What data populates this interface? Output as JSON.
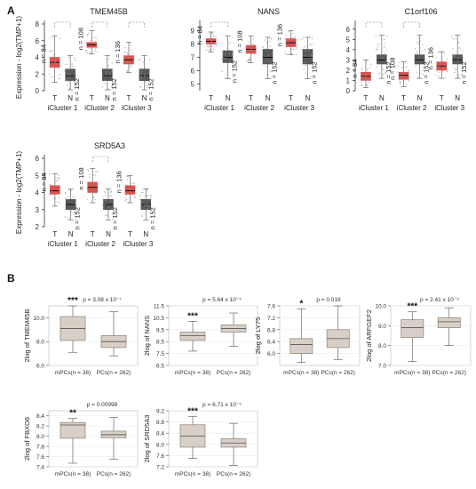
{
  "figure": {
    "panel_labels": [
      "A",
      "B"
    ],
    "ylabel_a": "Expression - log2(TMP+1)",
    "group_labels": [
      "T",
      "N"
    ],
    "cluster_labels": [
      "iCluster 1",
      "iCluster 2",
      "iCluster 3"
    ],
    "ylabel_b_prefix": "2log of "
  },
  "colors": {
    "tumor": "#d9534f",
    "normal": "#595959",
    "beige": "#d8cfc6",
    "beige_edge": "#8a8178"
  },
  "chart_data": [
    {
      "type": "box",
      "title": "TMEM45B",
      "ylabel": "Expression - log2(TMP+1)",
      "ylim": [
        0,
        8
      ],
      "yticks": [
        0,
        2,
        4,
        6,
        8
      ],
      "categories": [
        "iCluster 1",
        "iCluster 2",
        "iCluster 3"
      ],
      "series": [
        {
          "name": "T",
          "n": [
            "n = 84",
            "n = 108",
            "n = 136"
          ],
          "boxes": [
            [
              1.0,
              2.8,
              3.4,
              4.0,
              6.6
            ],
            [
              4.4,
              5.2,
              5.5,
              5.8,
              7.2
            ],
            [
              2.2,
              3.2,
              3.7,
              4.2,
              5.8
            ]
          ]
        },
        {
          "name": "N",
          "n": [
            "n = 152",
            "n = 152",
            "n = 152"
          ],
          "boxes": [
            [
              0.1,
              1.2,
              1.8,
              2.6,
              4.2
            ],
            [
              0.1,
              1.2,
              1.8,
              2.6,
              4.2
            ],
            [
              0.1,
              1.2,
              1.8,
              2.6,
              4.2
            ]
          ]
        }
      ],
      "significance": [
        true,
        true,
        true
      ]
    },
    {
      "type": "box",
      "title": "NANS",
      "ylim": [
        4.5,
        9.5
      ],
      "yticks": [
        5,
        6,
        7,
        8,
        9
      ],
      "categories": [
        "iCluster 1",
        "iCluster 2",
        "iCluster 3"
      ],
      "series": [
        {
          "name": "T",
          "n": [
            "n = 84",
            "n = 108",
            "n = 136"
          ],
          "boxes": [
            [
              7.4,
              8.0,
              8.2,
              8.4,
              8.9
            ],
            [
              6.6,
              7.3,
              7.6,
              7.9,
              8.6
            ],
            [
              7.2,
              7.8,
              8.1,
              8.4,
              9.0
            ]
          ]
        },
        {
          "name": "N",
          "n": [
            "n = 152",
            "n = 152",
            "n = 152"
          ],
          "boxes": [
            [
              5.4,
              6.6,
              7.0,
              7.5,
              8.6
            ],
            [
              5.4,
              6.5,
              7.0,
              7.6,
              8.5
            ],
            [
              5.4,
              6.5,
              7.0,
              7.6,
              8.5
            ]
          ]
        }
      ],
      "significance": [
        true,
        false,
        false
      ]
    },
    {
      "type": "box",
      "title": "C1orf106",
      "ylim": [
        0,
        6.5
      ],
      "yticks": [
        0,
        1,
        2,
        3,
        4,
        5,
        6
      ],
      "categories": [
        "iCluster 1",
        "iCluster 2",
        "iCluster 3"
      ],
      "series": [
        {
          "name": "T",
          "n": [
            "n = 84",
            "n = 108",
            "n = 136"
          ],
          "boxes": [
            [
              0.3,
              1.0,
              1.4,
              1.8,
              3.0
            ],
            [
              0.4,
              1.1,
              1.5,
              1.8,
              2.8
            ],
            [
              1.2,
              2.0,
              2.4,
              2.8,
              3.8
            ]
          ]
        },
        {
          "name": "N",
          "n": [
            "n = 152",
            "n = 152",
            "n = 152"
          ],
          "boxes": [
            [
              1.2,
              2.6,
              3.0,
              3.5,
              5.4
            ],
            [
              1.2,
              2.6,
              3.0,
              3.5,
              5.4
            ],
            [
              1.2,
              2.6,
              3.0,
              3.5,
              5.4
            ]
          ]
        }
      ],
      "significance": [
        true,
        true,
        false
      ]
    },
    {
      "type": "box",
      "title": "SRD5A3",
      "ylabel": "Expression - log2(TMP+1)",
      "ylim": [
        2,
        6
      ],
      "yticks": [
        2,
        3,
        4,
        5,
        6
      ],
      "categories": [
        "iCluster 1",
        "iCluster 2",
        "iCluster 3"
      ],
      "series": [
        {
          "name": "T",
          "n": [
            "n = 84",
            "n = 108",
            "n = 136"
          ],
          "boxes": [
            [
              3.2,
              3.9,
              4.1,
              4.4,
              5.1
            ],
            [
              3.4,
              4.0,
              4.3,
              4.6,
              5.4
            ],
            [
              3.4,
              3.9,
              4.1,
              4.4,
              5.0
            ]
          ]
        },
        {
          "name": "N",
          "n": [
            "n = 152",
            "n = 152",
            "n = 152"
          ],
          "boxes": [
            [
              2.4,
              3.0,
              3.3,
              3.6,
              4.2
            ],
            [
              2.4,
              3.0,
              3.3,
              3.6,
              4.2
            ],
            [
              2.4,
              3.0,
              3.3,
              3.6,
              4.2
            ]
          ]
        }
      ],
      "significance": [
        false,
        true,
        false
      ]
    },
    {
      "type": "box",
      "gene": "TMEM45B",
      "ylabel": "2log of TMEM45B",
      "pvalue": "p = 3.08 x 10⁻⁷",
      "ylim": [
        6.0,
        11.0
      ],
      "yticks": [
        6.0,
        8.0,
        10.0
      ],
      "categories": [
        "mPCs(n = 38)",
        "PCs(n = 262)"
      ],
      "boxes": [
        [
          7.1,
          8.1,
          9.1,
          10.1,
          11.0
        ],
        [
          6.8,
          7.5,
          8.0,
          8.5,
          10.5
        ]
      ],
      "stars": "***"
    },
    {
      "type": "box",
      "gene": "NANS",
      "ylabel": "2log of NANS",
      "pvalue": "p = 5.64 x 10⁻⁵",
      "ylim": [
        6.5,
        11.5
      ],
      "yticks": [
        6.5,
        7.5,
        8.5,
        9.5,
        10.5,
        11.5
      ],
      "categories": [
        "mPCs(n = 38)",
        "PCs(n = 262)"
      ],
      "boxes": [
        [
          7.7,
          8.6,
          9.0,
          9.3,
          10.2
        ],
        [
          8.1,
          9.3,
          9.6,
          9.9,
          10.9
        ]
      ],
      "stars": "***"
    },
    {
      "type": "box",
      "gene": "LY75",
      "ylabel": "2log of LY75",
      "pvalue": "p = 0.018",
      "ylim": [
        5.6,
        7.6
      ],
      "yticks": [
        6.0,
        6.4,
        6.8,
        7.2,
        7.6
      ],
      "categories": [
        "mPCs(n = 38)",
        "PCs(n = 262)"
      ],
      "boxes": [
        [
          5.7,
          6.0,
          6.3,
          6.5,
          7.5
        ],
        [
          5.8,
          6.2,
          6.5,
          6.8,
          7.6
        ]
      ],
      "stars": "*"
    },
    {
      "type": "box",
      "gene": "ARFGEF2",
      "ylabel": "2log of ARFGEF2",
      "pvalue": "p = 2.41 x 10⁻⁵",
      "ylim": [
        7.0,
        10.0
      ],
      "yticks": [
        7.0,
        8.0,
        9.0,
        10.0
      ],
      "categories": [
        "mPCs(n = 38)",
        "PCs(n = 262)"
      ],
      "boxes": [
        [
          7.2,
          8.4,
          8.9,
          9.3,
          9.7
        ],
        [
          8.0,
          8.9,
          9.2,
          9.4,
          9.9
        ]
      ],
      "stars": "***"
    },
    {
      "type": "box",
      "gene": "FBXO6",
      "ylabel": "2log of FBXO6",
      "pvalue": "p = 0.00998",
      "ylim": [
        7.4,
        8.5
      ],
      "yticks": [
        7.4,
        7.6,
        7.8,
        8.0,
        8.2,
        8.4
      ],
      "categories": [
        "mPCs(n = 38)",
        "PCs(n = 262)"
      ],
      "boxes": [
        [
          7.47,
          7.96,
          8.22,
          8.27,
          8.35
        ],
        [
          7.55,
          7.97,
          8.03,
          8.1,
          8.37
        ]
      ],
      "stars": "**"
    },
    {
      "type": "box",
      "gene": "SRD5A3",
      "ylabel": "2log of SRD5A3",
      "pvalue": "p = 6.71 x 10⁻⁵",
      "ylim": [
        7.2,
        9.2
      ],
      "yticks": [
        7.2,
        7.6,
        8.0,
        8.4,
        8.8,
        9.2
      ],
      "categories": [
        "mPCs(n = 38)",
        "PCs(n = 262)"
      ],
      "boxes": [
        [
          7.5,
          7.9,
          8.3,
          8.7,
          9.0
        ],
        [
          7.25,
          7.9,
          8.05,
          8.2,
          8.75
        ]
      ],
      "stars": "***"
    }
  ]
}
